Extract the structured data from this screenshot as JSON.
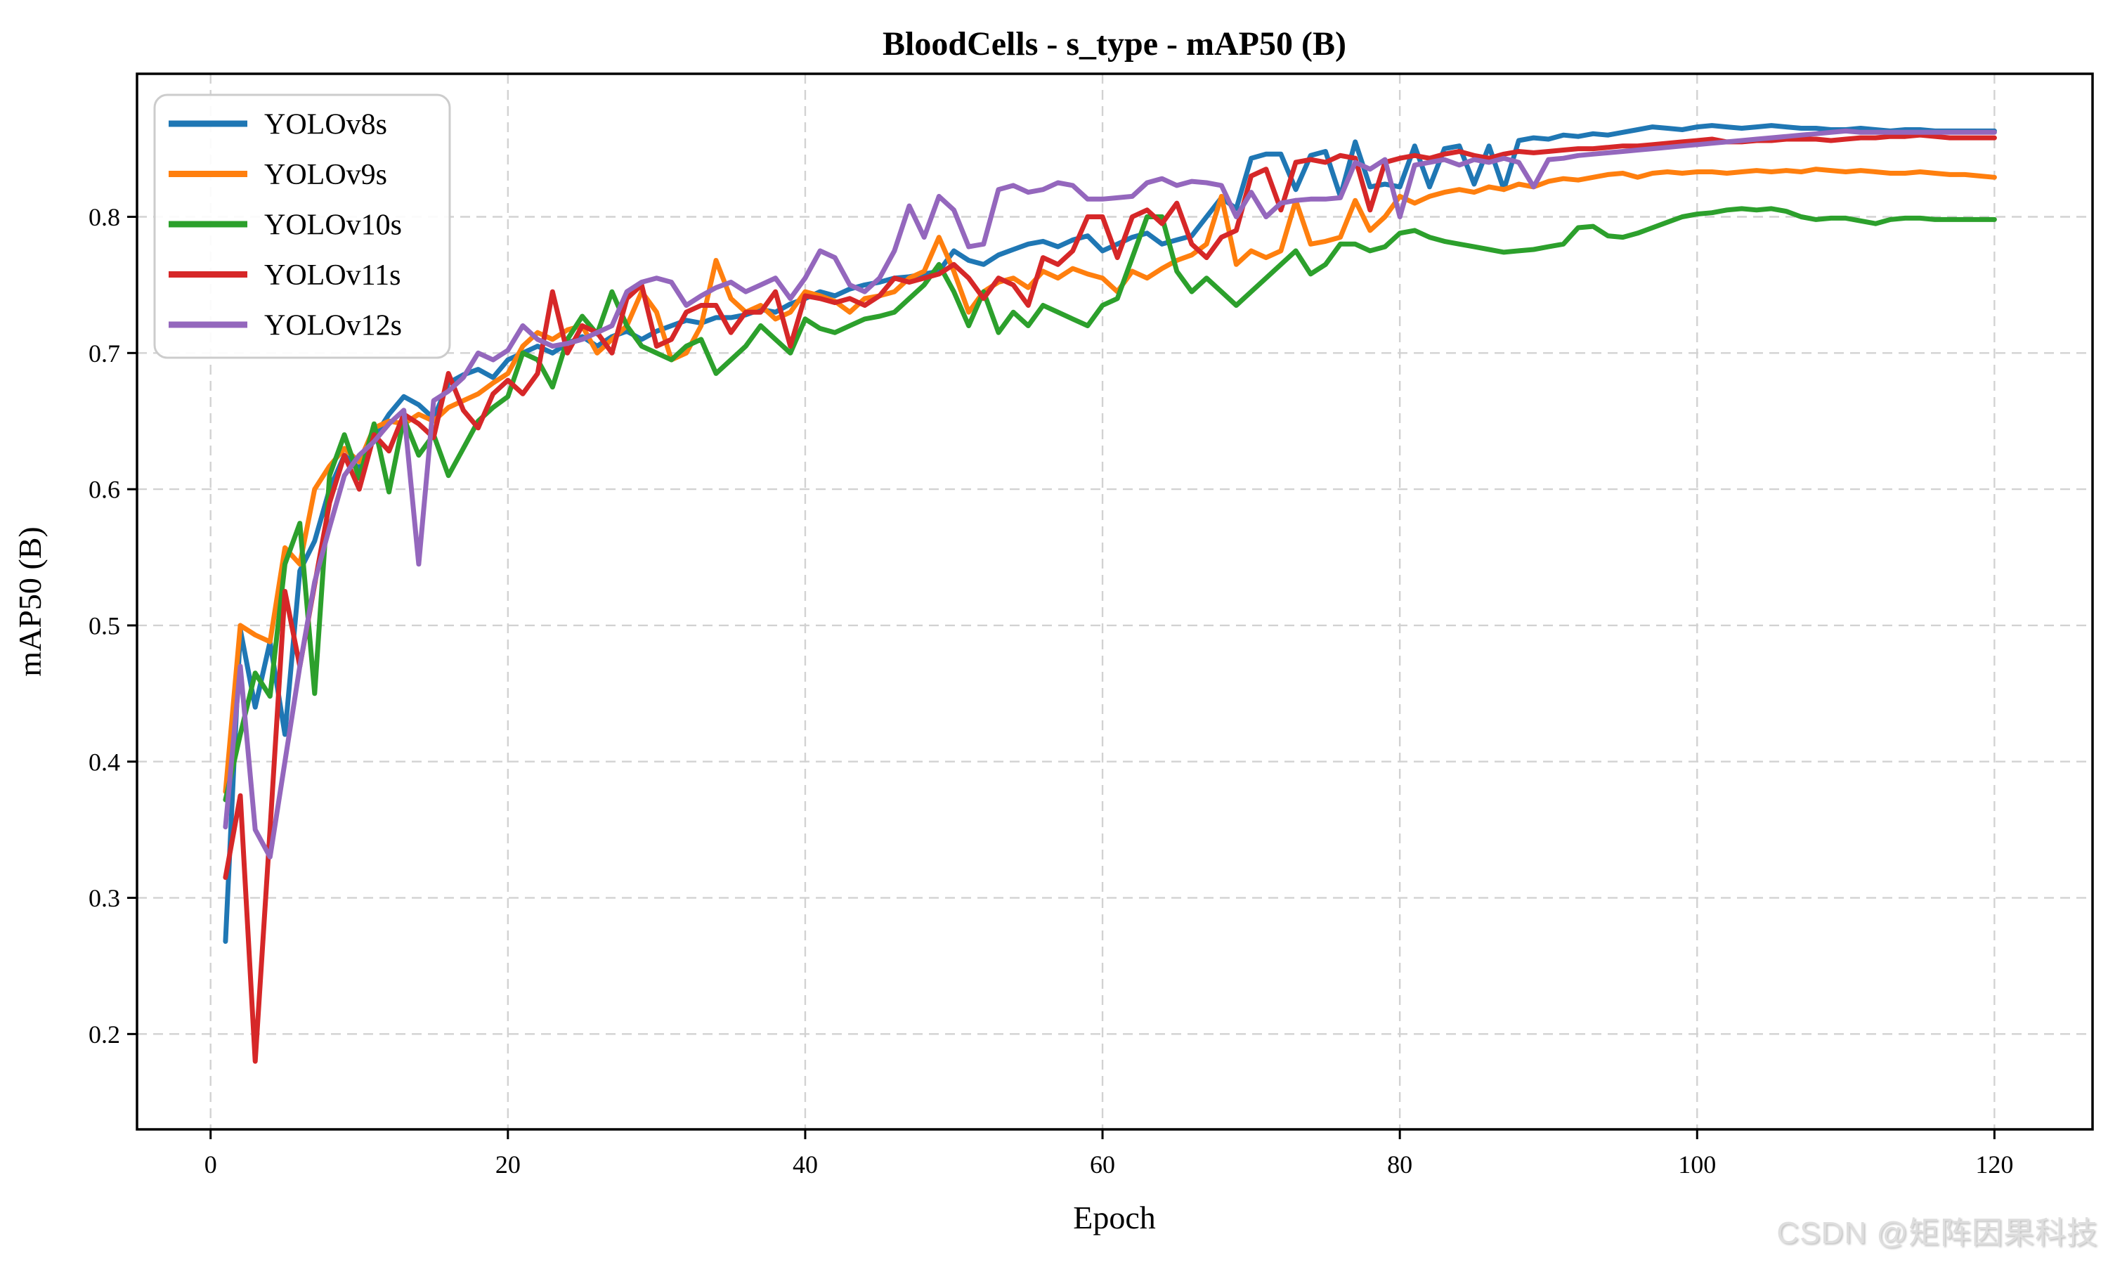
{
  "figure": {
    "background": "#ffffff"
  },
  "watermark": {
    "text": "CSDN @矩阵因果科技",
    "color": "#dedede"
  },
  "chart_data": {
    "type": "line",
    "title": "BloodCells - s_type - mAP50 (B)",
    "xlabel": "Epoch",
    "ylabel": "mAP50 (B)",
    "xlim": [
      -4.95,
      126.6
    ],
    "ylim": [
      0.13,
      0.905
    ],
    "xticks": [
      0,
      20,
      40,
      60,
      80,
      100,
      120
    ],
    "yticks": [
      0.2,
      0.3,
      0.4,
      0.5,
      0.6,
      0.7,
      0.8
    ],
    "grid": true,
    "grid_style": "dashed",
    "grid_color": "#d2d2d2",
    "legend_position": "upper-left",
    "x_start_epoch": 1,
    "series": [
      {
        "name": "YOLOv8s",
        "color": "#1f77b4",
        "values": [
          0.268,
          0.497,
          0.44,
          0.488,
          0.42,
          0.54,
          0.562,
          0.6,
          0.625,
          0.615,
          0.638,
          0.655,
          0.668,
          0.662,
          0.652,
          0.678,
          0.684,
          0.688,
          0.682,
          0.695,
          0.7,
          0.705,
          0.7,
          0.707,
          0.712,
          0.705,
          0.712,
          0.716,
          0.71,
          0.716,
          0.72,
          0.724,
          0.722,
          0.726,
          0.726,
          0.728,
          0.732,
          0.73,
          0.736,
          0.74,
          0.745,
          0.742,
          0.747,
          0.75,
          0.752,
          0.755,
          0.756,
          0.758,
          0.76,
          0.775,
          0.768,
          0.765,
          0.772,
          0.776,
          0.78,
          0.782,
          0.778,
          0.783,
          0.786,
          0.775,
          0.78,
          0.785,
          0.788,
          0.78,
          0.783,
          0.786,
          0.8,
          0.814,
          0.806,
          0.843,
          0.846,
          0.846,
          0.82,
          0.845,
          0.848,
          0.815,
          0.855,
          0.822,
          0.824,
          0.822,
          0.852,
          0.822,
          0.85,
          0.852,
          0.824,
          0.852,
          0.82,
          0.856,
          0.858,
          0.857,
          0.86,
          0.859,
          0.861,
          0.86,
          0.862,
          0.864,
          0.866,
          0.865,
          0.864,
          0.866,
          0.867,
          0.866,
          0.865,
          0.866,
          0.867,
          0.866,
          0.865,
          0.865,
          0.864,
          0.864,
          0.865,
          0.864,
          0.863,
          0.864,
          0.864,
          0.863,
          0.863,
          0.863,
          0.863,
          0.863
        ]
      },
      {
        "name": "YOLOv9s",
        "color": "#ff7f0e",
        "values": [
          0.378,
          0.5,
          0.493,
          0.488,
          0.557,
          0.545,
          0.6,
          0.617,
          0.63,
          0.62,
          0.645,
          0.65,
          0.648,
          0.655,
          0.65,
          0.66,
          0.665,
          0.67,
          0.678,
          0.685,
          0.705,
          0.715,
          0.71,
          0.717,
          0.72,
          0.7,
          0.71,
          0.72,
          0.745,
          0.73,
          0.695,
          0.7,
          0.72,
          0.768,
          0.74,
          0.73,
          0.735,
          0.725,
          0.73,
          0.745,
          0.742,
          0.738,
          0.73,
          0.74,
          0.742,
          0.745,
          0.755,
          0.76,
          0.785,
          0.76,
          0.73,
          0.745,
          0.752,
          0.755,
          0.748,
          0.76,
          0.755,
          0.762,
          0.758,
          0.755,
          0.745,
          0.76,
          0.755,
          0.762,
          0.768,
          0.772,
          0.78,
          0.815,
          0.765,
          0.775,
          0.77,
          0.775,
          0.812,
          0.78,
          0.782,
          0.785,
          0.812,
          0.79,
          0.8,
          0.815,
          0.81,
          0.815,
          0.818,
          0.82,
          0.818,
          0.822,
          0.82,
          0.824,
          0.822,
          0.826,
          0.828,
          0.827,
          0.829,
          0.831,
          0.832,
          0.829,
          0.832,
          0.833,
          0.832,
          0.833,
          0.833,
          0.832,
          0.833,
          0.834,
          0.833,
          0.834,
          0.833,
          0.835,
          0.834,
          0.833,
          0.834,
          0.833,
          0.832,
          0.832,
          0.833,
          0.832,
          0.831,
          0.831,
          0.83,
          0.829
        ]
      },
      {
        "name": "YOLOv10s",
        "color": "#2ca02c",
        "values": [
          0.372,
          0.42,
          0.465,
          0.448,
          0.545,
          0.575,
          0.45,
          0.61,
          0.64,
          0.608,
          0.648,
          0.598,
          0.652,
          0.625,
          0.64,
          0.61,
          0.63,
          0.65,
          0.66,
          0.668,
          0.7,
          0.695,
          0.675,
          0.71,
          0.727,
          0.714,
          0.745,
          0.72,
          0.705,
          0.7,
          0.695,
          0.705,
          0.71,
          0.685,
          0.695,
          0.705,
          0.72,
          0.71,
          0.7,
          0.725,
          0.718,
          0.715,
          0.72,
          0.725,
          0.727,
          0.73,
          0.74,
          0.75,
          0.765,
          0.745,
          0.72,
          0.745,
          0.715,
          0.73,
          0.72,
          0.735,
          0.73,
          0.725,
          0.72,
          0.735,
          0.74,
          0.77,
          0.8,
          0.8,
          0.76,
          0.745,
          0.755,
          0.745,
          0.735,
          0.745,
          0.755,
          0.765,
          0.775,
          0.758,
          0.765,
          0.78,
          0.78,
          0.775,
          0.778,
          0.788,
          0.79,
          0.785,
          0.782,
          0.78,
          0.778,
          0.776,
          0.774,
          0.775,
          0.776,
          0.778,
          0.78,
          0.792,
          0.793,
          0.786,
          0.785,
          0.788,
          0.792,
          0.796,
          0.8,
          0.802,
          0.803,
          0.805,
          0.806,
          0.805,
          0.806,
          0.804,
          0.8,
          0.798,
          0.799,
          0.799,
          0.797,
          0.795,
          0.798,
          0.799,
          0.799,
          0.798,
          0.798,
          0.798,
          0.798,
          0.798
        ]
      },
      {
        "name": "YOLOv11s",
        "color": "#d62728",
        "values": [
          0.315,
          0.375,
          0.18,
          0.35,
          0.525,
          0.47,
          0.53,
          0.59,
          0.625,
          0.6,
          0.64,
          0.628,
          0.655,
          0.648,
          0.638,
          0.685,
          0.658,
          0.645,
          0.67,
          0.68,
          0.67,
          0.685,
          0.745,
          0.7,
          0.72,
          0.715,
          0.7,
          0.74,
          0.75,
          0.705,
          0.71,
          0.73,
          0.735,
          0.735,
          0.715,
          0.73,
          0.73,
          0.745,
          0.705,
          0.742,
          0.74,
          0.737,
          0.74,
          0.735,
          0.742,
          0.755,
          0.752,
          0.755,
          0.758,
          0.765,
          0.755,
          0.74,
          0.755,
          0.75,
          0.735,
          0.77,
          0.765,
          0.775,
          0.8,
          0.8,
          0.77,
          0.8,
          0.805,
          0.795,
          0.81,
          0.78,
          0.77,
          0.785,
          0.79,
          0.83,
          0.835,
          0.805,
          0.84,
          0.842,
          0.84,
          0.845,
          0.843,
          0.805,
          0.84,
          0.843,
          0.845,
          0.843,
          0.846,
          0.848,
          0.845,
          0.843,
          0.846,
          0.848,
          0.847,
          0.848,
          0.849,
          0.85,
          0.85,
          0.851,
          0.852,
          0.852,
          0.853,
          0.854,
          0.855,
          0.856,
          0.857,
          0.855,
          0.855,
          0.856,
          0.856,
          0.857,
          0.857,
          0.857,
          0.856,
          0.857,
          0.858,
          0.858,
          0.859,
          0.859,
          0.86,
          0.859,
          0.858,
          0.858,
          0.858,
          0.858
        ]
      },
      {
        "name": "YOLOv12s",
        "color": "#9467bd",
        "values": [
          0.352,
          0.47,
          0.35,
          0.33,
          0.4,
          0.47,
          0.532,
          0.572,
          0.61,
          0.625,
          0.635,
          0.648,
          0.658,
          0.545,
          0.665,
          0.672,
          0.682,
          0.7,
          0.695,
          0.702,
          0.72,
          0.71,
          0.705,
          0.707,
          0.71,
          0.715,
          0.72,
          0.745,
          0.752,
          0.755,
          0.752,
          0.735,
          0.742,
          0.748,
          0.752,
          0.745,
          0.75,
          0.755,
          0.74,
          0.755,
          0.775,
          0.77,
          0.75,
          0.745,
          0.755,
          0.775,
          0.808,
          0.785,
          0.815,
          0.805,
          0.778,
          0.78,
          0.82,
          0.823,
          0.818,
          0.82,
          0.825,
          0.823,
          0.813,
          0.813,
          0.814,
          0.815,
          0.825,
          0.828,
          0.823,
          0.826,
          0.825,
          0.823,
          0.8,
          0.818,
          0.8,
          0.81,
          0.812,
          0.813,
          0.813,
          0.814,
          0.84,
          0.835,
          0.842,
          0.8,
          0.838,
          0.84,
          0.842,
          0.838,
          0.842,
          0.84,
          0.843,
          0.84,
          0.822,
          0.842,
          0.843,
          0.845,
          0.846,
          0.847,
          0.848,
          0.849,
          0.85,
          0.851,
          0.852,
          0.853,
          0.854,
          0.855,
          0.856,
          0.857,
          0.858,
          0.859,
          0.86,
          0.861,
          0.862,
          0.863,
          0.862,
          0.862,
          0.862,
          0.862,
          0.862,
          0.862,
          0.862,
          0.862,
          0.862,
          0.862
        ]
      }
    ]
  }
}
